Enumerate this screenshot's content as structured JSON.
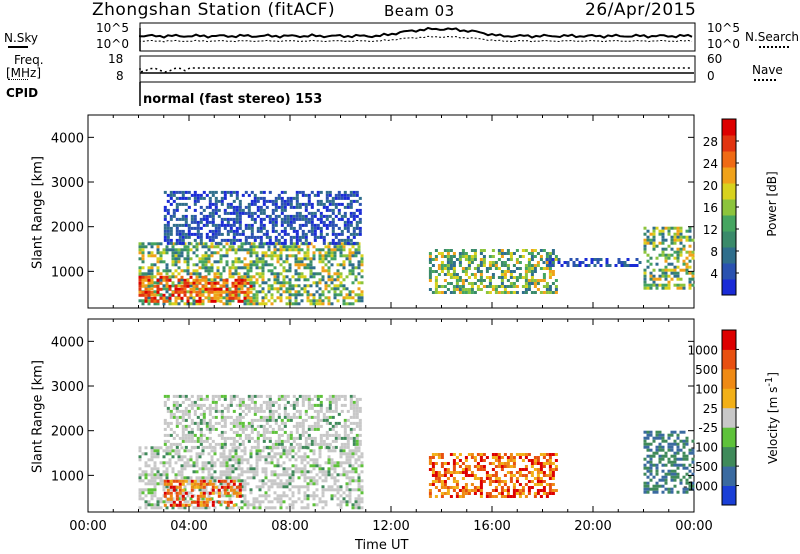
{
  "header": {
    "station_title": "Zhongshan Station (fitACF)",
    "beam": "Beam 03",
    "date": "26/Apr/2015"
  },
  "panels": {
    "nsky_label": "N.Sky",
    "nsky_ticks": [
      "10^5",
      "10^0"
    ],
    "nsearch_label": "N.Search",
    "nsearch_ticks": [
      "10^5",
      "10^0"
    ],
    "freq_label_1": "Freq.",
    "freq_label_2": "[MHz]",
    "freq_ticks": [
      "18",
      "8"
    ],
    "nave_label": "Nave",
    "nave_ticks": [
      "60",
      "0"
    ],
    "cpid_label": "CPID",
    "cpid_text": "normal (fast stereo) 153"
  },
  "chart_data": [
    {
      "type": "heatmap",
      "name": "power",
      "ylabel": "Slant Range [km]",
      "ytick_labels": [
        "1000",
        "2000",
        "3000",
        "4000"
      ],
      "yticks": [
        1000,
        2000,
        3000,
        4000
      ],
      "ylim": [
        180,
        4500
      ],
      "xlim": [
        0,
        24
      ],
      "xlabel": "",
      "colorbar": {
        "label": "Power [dB]",
        "tick_labels": [
          "28",
          "24",
          "20",
          "16",
          "12",
          "8",
          "4"
        ],
        "range": [
          0,
          32
        ],
        "colors": [
          "#1a2bd6",
          "#2a52b0",
          "#2f6e8c",
          "#3a8a6a",
          "#45a560",
          "#8cc43c",
          "#d8d21e",
          "#f0a21a",
          "#ef6a14",
          "#e23410",
          "#dd0000"
        ]
      },
      "regions": [
        {
          "t": [
            2.0,
            10.8
          ],
          "r": [
            300,
            1650
          ],
          "level": "mid"
        },
        {
          "t": [
            2.0,
            6.5
          ],
          "r": [
            300,
            900
          ],
          "level": "high"
        },
        {
          "t": [
            3.0,
            10.8
          ],
          "r": [
            1600,
            2800
          ],
          "level": "low"
        },
        {
          "t": [
            13.5,
            18.5
          ],
          "r": [
            500,
            1500
          ],
          "level": "mid"
        },
        {
          "t": [
            18.0,
            22.0
          ],
          "r": [
            1100,
            1300
          ],
          "level": "low"
        },
        {
          "t": [
            22.0,
            24.0
          ],
          "r": [
            600,
            2000
          ],
          "level": "mid"
        }
      ]
    },
    {
      "type": "heatmap",
      "name": "velocity",
      "ylabel": "Slant Range [km]",
      "xlabel": "Time UT",
      "ytick_labels": [
        "1000",
        "2000",
        "3000",
        "4000"
      ],
      "yticks": [
        1000,
        2000,
        3000,
        4000
      ],
      "ylim": [
        180,
        4500
      ],
      "xlim": [
        0,
        24
      ],
      "xtick_labels": [
        "00:00",
        "04:00",
        "08:00",
        "12:00",
        "16:00",
        "20:00",
        "00:00"
      ],
      "xticks": [
        0,
        4,
        8,
        12,
        16,
        20,
        24
      ],
      "colorbar": {
        "label": "Velocity [m s^-1]",
        "tick_labels": [
          "1000",
          "500",
          "100",
          "25",
          "-25",
          "-100",
          "-500",
          "-1000"
        ],
        "colors": [
          "#1a3fd6",
          "#3a6aa0",
          "#3f8a5a",
          "#5ec23a",
          "#c8c8c8",
          "#f2b018",
          "#ef8a14",
          "#e85010",
          "#dd0000"
        ]
      },
      "regions": [
        {
          "t": [
            2.0,
            10.8
          ],
          "r": [
            300,
            1650
          ],
          "level": "slow"
        },
        {
          "t": [
            3.0,
            6.0
          ],
          "r": [
            300,
            900
          ],
          "level": "neg"
        },
        {
          "t": [
            3.0,
            10.8
          ],
          "r": [
            1600,
            2800
          ],
          "level": "slow"
        },
        {
          "t": [
            13.5,
            18.5
          ],
          "r": [
            500,
            1500
          ],
          "level": "neg"
        },
        {
          "t": [
            22.0,
            24.0
          ],
          "r": [
            600,
            2000
          ],
          "level": "pos"
        }
      ]
    }
  ]
}
